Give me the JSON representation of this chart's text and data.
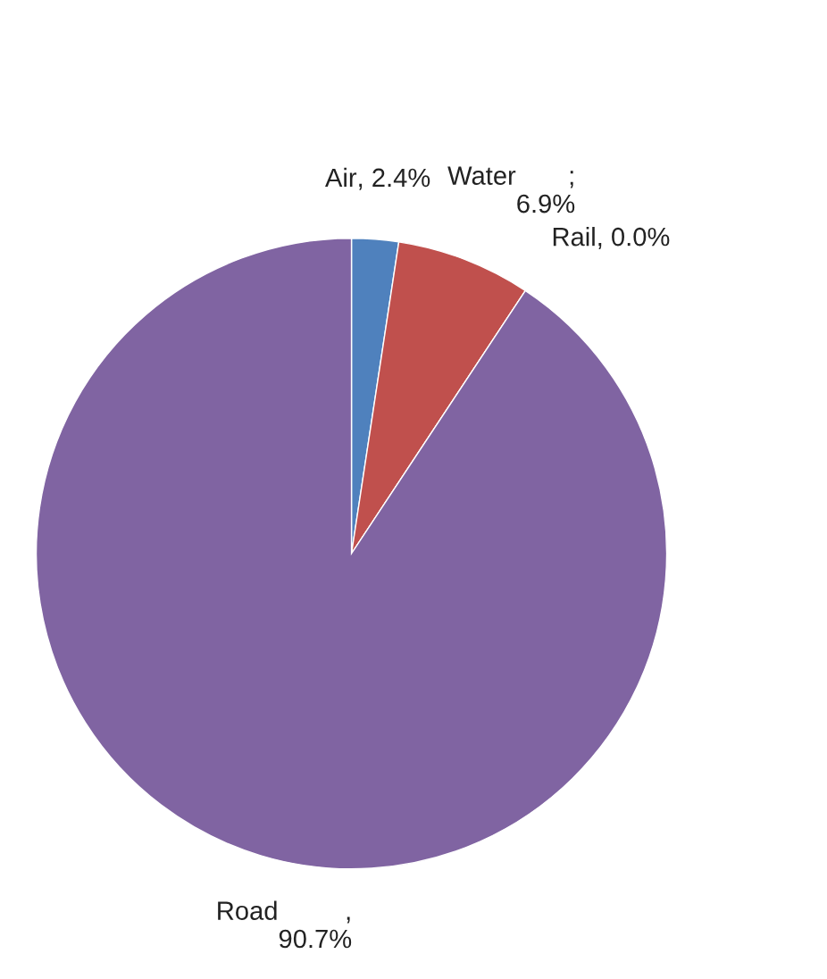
{
  "chart_data": {
    "type": "pie",
    "categories": [
      "Air",
      "Water",
      "Rail",
      "Road"
    ],
    "values": [
      2.4,
      6.9,
      0.0,
      90.7
    ],
    "colors": [
      "#4f81bd",
      "#c0504d",
      "#9bbb59",
      "#8064a2"
    ],
    "value_labels": [
      ", 2.4%",
      ";\n6.9%",
      ", 0.0%",
      ",\n90.7%"
    ]
  }
}
